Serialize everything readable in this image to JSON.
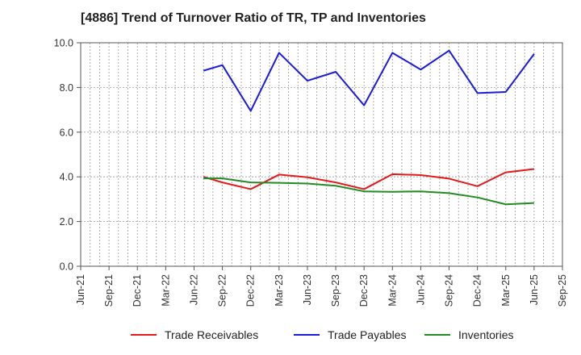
{
  "chart_data": {
    "type": "line",
    "title": "[4886]  Trend of Turnover Ratio of TR, TP and Inventories",
    "xlabel": "",
    "ylabel": "",
    "ylim": [
      0,
      10
    ],
    "y_ticks": [
      "0.0",
      "2.0",
      "4.0",
      "6.0",
      "8.0",
      "10.0"
    ],
    "x_ticks": [
      "Jun-21",
      "Sep-21",
      "Dec-21",
      "Mar-22",
      "Jun-22",
      "Sep-22",
      "Dec-22",
      "Mar-23",
      "Jun-23",
      "Sep-23",
      "Dec-23",
      "Mar-24",
      "Jun-24",
      "Sep-24",
      "Dec-24",
      "Mar-25",
      "Jun-25",
      "Sep-25"
    ],
    "x": [
      "Jul-22",
      "Aug-22",
      "Sep-22",
      "Oct-22",
      "Nov-22",
      "Dec-22",
      "Jan-23",
      "Feb-23",
      "Mar-23",
      "Apr-23",
      "May-23",
      "Jun-23",
      "Jul-23",
      "Aug-23",
      "Sep-23",
      "Oct-23",
      "Nov-23",
      "Dec-23",
      "Jan-24",
      "Feb-24",
      "Mar-24",
      "Apr-24",
      "May-24",
      "Jun-24",
      "Jul-24",
      "Aug-24",
      "Sep-24",
      "Oct-24",
      "Nov-24",
      "Dec-24",
      "Jan-25",
      "Feb-25",
      "Mar-25",
      "Apr-25",
      "May-25",
      "Jun-25"
    ],
    "grid": true,
    "legend_position": "bottom",
    "series": [
      {
        "name": "Trade Receivables",
        "color": "#e41a1c",
        "values": [
          4.0,
          null,
          3.75,
          null,
          null,
          3.45,
          null,
          null,
          4.1,
          null,
          null,
          3.98,
          null,
          null,
          3.75,
          null,
          null,
          3.45,
          null,
          null,
          4.12,
          null,
          null,
          4.08,
          null,
          null,
          3.92,
          null,
          null,
          3.58,
          null,
          null,
          4.2,
          null,
          null,
          4.35
        ]
      },
      {
        "name": "Trade Payables",
        "color": "#1a1adf",
        "values": [
          8.75,
          null,
          9.0,
          null,
          null,
          6.95,
          null,
          null,
          9.55,
          null,
          null,
          8.3,
          null,
          null,
          8.7,
          null,
          null,
          7.2,
          null,
          null,
          9.55,
          null,
          null,
          8.8,
          null,
          null,
          9.65,
          null,
          null,
          7.75,
          null,
          null,
          7.8,
          null,
          null,
          9.5
        ]
      },
      {
        "name": "Inventories",
        "color": "#228b22",
        "values": [
          3.93,
          null,
          3.93,
          null,
          null,
          3.75,
          null,
          null,
          3.73,
          null,
          null,
          3.7,
          null,
          null,
          3.6,
          null,
          null,
          3.35,
          null,
          null,
          3.33,
          null,
          null,
          3.35,
          null,
          null,
          3.27,
          null,
          null,
          3.08,
          null,
          null,
          2.77,
          null,
          null,
          2.83
        ]
      }
    ]
  }
}
